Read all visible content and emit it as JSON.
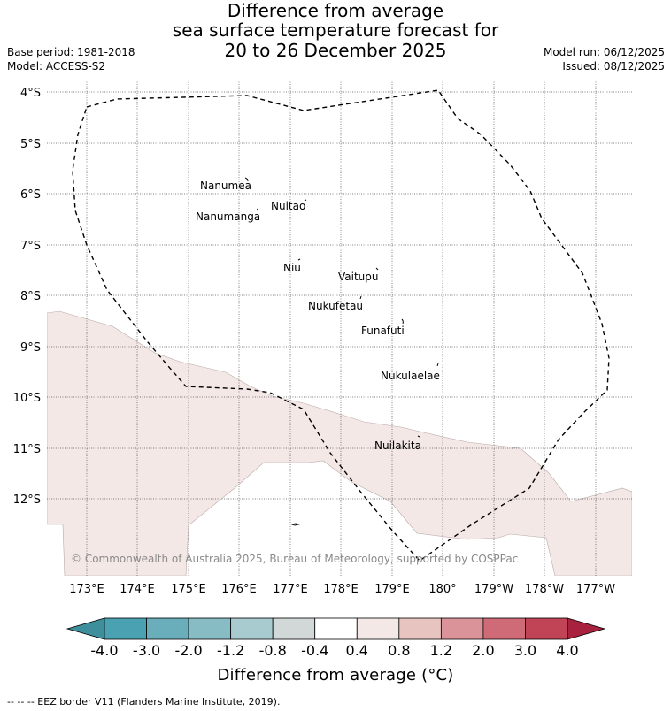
{
  "title_lines": [
    "Difference from average",
    "sea surface temperature forecast for",
    "20 to 26 December 2025"
  ],
  "base_period": "Base period: 1981-2018",
  "model": "Model: ACCESS-S2",
  "model_run": "Model run: 06/12/2025",
  "issued": "Issued: 08/12/2025",
  "map": {
    "lon_range": [
      172.6,
      183.4
    ],
    "lat_range": [
      -13.5,
      -3.8
    ],
    "lat_ticks": [
      "4°S",
      "5°S",
      "6°S",
      "7°S",
      "8°S",
      "9°S",
      "10°S",
      "11°S",
      "12°S"
    ],
    "lon_ticks": [
      "173°E",
      "174°E",
      "175°E",
      "176°E",
      "177°E",
      "178°E",
      "179°E",
      "180°",
      "179°W",
      "178°W",
      "177°W"
    ],
    "anomaly_region_color": "#f4e8e6",
    "anomaly_category": "0.4 to 0.8",
    "eez_border_style": "dashed",
    "islands": [
      {
        "name": "Nanumea"
      },
      {
        "name": "Nuitao"
      },
      {
        "name": "Nanumanga"
      },
      {
        "name": "Niu"
      },
      {
        "name": "Vaitupu"
      },
      {
        "name": "Nukufetau"
      },
      {
        "name": "Funafuti"
      },
      {
        "name": "Nukulaelae"
      },
      {
        "name": "Nuilakita"
      }
    ],
    "copyright": "© Commonwealth of Australia 2025, Bureau of Meteorology, supported by COSPPac"
  },
  "colorbar": {
    "labels": [
      "-4.0",
      "-3.0",
      "-2.0",
      "-1.2",
      "-0.8",
      "-0.4",
      "0.4",
      "0.8",
      "1.2",
      "2.0",
      "3.0",
      "4.0"
    ],
    "colors": [
      "#4aa1b1",
      "#6aaebb",
      "#88bcc5",
      "#a8cbcf",
      "#d2d7d8",
      "#ffffff",
      "#f4e8e6",
      "#e8c4c1",
      "#da9399",
      "#cf6b77",
      "#c04455"
    ],
    "low_extend_color": "#3e8f9c",
    "high_extend_color": "#a8213e",
    "title": "Difference from average (°C)"
  },
  "footnote": "-- -- -- EEZ border V11 (Flanders Marine Institute, 2019)."
}
